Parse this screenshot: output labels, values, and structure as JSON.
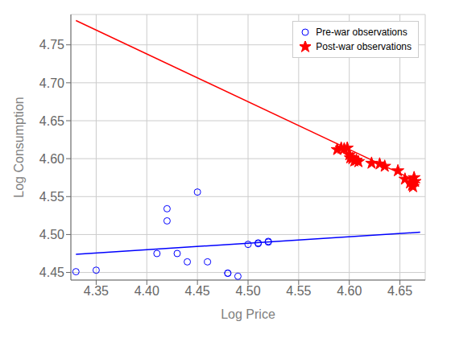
{
  "chart_data": {
    "type": "scatter",
    "xlabel": "Log Price",
    "ylabel": "Log Consumption",
    "xlim": [
      4.325,
      4.675
    ],
    "ylim": [
      4.44,
      4.79
    ],
    "xticks": [
      4.35,
      {
        "value": 4.4,
        "label": "4.40"
      },
      4.45,
      {
        "value": 4.5,
        "label": "4.50"
      },
      4.55,
      {
        "value": 4.6,
        "label": "4.60"
      },
      4.65
    ],
    "yticks": [
      4.45,
      {
        "value": 4.5,
        "label": "4.50"
      },
      4.55,
      {
        "value": 4.6,
        "label": "4.60"
      },
      4.65,
      {
        "value": 4.7,
        "label": "4.70"
      },
      4.75
    ],
    "grid": true,
    "legend": "upper right",
    "series": [
      {
        "type": "line",
        "color": "#0000ff",
        "x": [
          4.33,
          4.67
        ],
        "values": [
          4.474,
          4.503
        ]
      },
      {
        "type": "line",
        "color": "#ff0000",
        "x": [
          4.33,
          4.67
        ],
        "values": [
          4.782,
          4.568
        ]
      },
      {
        "name": "Pre-war observations",
        "type": "scatter",
        "marker": "circle",
        "color": "#0000ff",
        "x": [
          4.33,
          4.35,
          4.41,
          4.42,
          4.42,
          4.43,
          4.44,
          4.45,
          4.46,
          4.48,
          4.48,
          4.49,
          4.5,
          4.51,
          4.51,
          4.52,
          4.52
        ],
        "values": [
          4.451,
          4.453,
          4.475,
          4.518,
          4.534,
          4.475,
          4.464,
          4.556,
          4.464,
          4.449,
          4.449,
          4.445,
          4.487,
          4.488,
          4.489,
          4.49,
          4.491
        ]
      },
      {
        "name": "Post-war observations",
        "type": "scatter",
        "marker": "star",
        "color": "#ff0000",
        "x": [
          4.588,
          4.592,
          4.595,
          4.598,
          4.6,
          4.601,
          4.603,
          4.605,
          4.607,
          4.609,
          4.622,
          4.63,
          4.635,
          4.648,
          4.655,
          4.66,
          4.662,
          4.663,
          4.664,
          4.665
        ],
        "values": [
          4.612,
          4.614,
          4.613,
          4.614,
          4.605,
          4.601,
          4.6,
          4.597,
          4.598,
          4.596,
          4.594,
          4.593,
          4.59,
          4.584,
          4.573,
          4.568,
          4.565,
          4.563,
          4.575,
          4.57
        ]
      }
    ]
  }
}
